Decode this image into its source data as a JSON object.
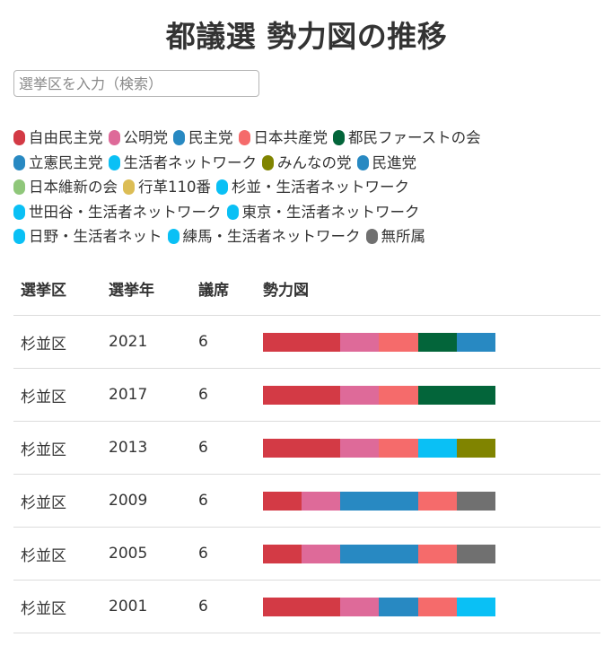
{
  "title": "都議選 勢力図の推移",
  "search": {
    "placeholder": "選挙区を入力（検索）"
  },
  "legend": {
    "lines": [
      [
        {
          "label": "自由民主党",
          "color": "#d33a45"
        },
        {
          "label": "公明党",
          "color": "#de6a99"
        },
        {
          "label": "民主党",
          "color": "#2889c2"
        },
        {
          "label": "日本共産党",
          "color": "#f56b6b"
        },
        {
          "label": "都民ファーストの会",
          "color": "#03653a"
        }
      ],
      [
        {
          "label": "立憲民主党",
          "color": "#2889c2"
        },
        {
          "label": "生活者ネットワーク",
          "color": "#0ac0f5"
        },
        {
          "label": "みんなの党",
          "color": "#808400"
        },
        {
          "label": "民進党",
          "color": "#2889c2"
        }
      ],
      [
        {
          "label": "日本維新の会",
          "color": "#8fc77a"
        },
        {
          "label": "行革110番",
          "color": "#dcbd55"
        },
        {
          "label": "杉並・生活者ネットワーク",
          "color": "#0ac0f5"
        }
      ],
      [
        {
          "label": "世田谷・生活者ネットワーク",
          "color": "#0ac0f5"
        },
        {
          "label": "東京・生活者ネットワーク",
          "color": "#0ac0f5"
        }
      ],
      [
        {
          "label": "日野・生活者ネット",
          "color": "#0ac0f5"
        },
        {
          "label": "練馬・生活者ネットワーク",
          "color": "#0ac0f5"
        },
        {
          "label": "無所属",
          "color": "#707070"
        }
      ]
    ]
  },
  "table": {
    "headers": [
      "選挙区",
      "選挙年",
      "議席",
      "勢力図"
    ],
    "rows": [
      {
        "district": "杉並区",
        "year": "2021",
        "seats": "6",
        "bar": [
          {
            "party": "自由民主党",
            "seats": 2,
            "color": "#d33a45"
          },
          {
            "party": "公明党",
            "seats": 1,
            "color": "#de6a99"
          },
          {
            "party": "日本共産党",
            "seats": 1,
            "color": "#f56b6b"
          },
          {
            "party": "都民ファーストの会",
            "seats": 1,
            "color": "#03653a"
          },
          {
            "party": "立憲民主党",
            "seats": 1,
            "color": "#2889c2"
          }
        ]
      },
      {
        "district": "杉並区",
        "year": "2017",
        "seats": "6",
        "bar": [
          {
            "party": "自由民主党",
            "seats": 2,
            "color": "#d33a45"
          },
          {
            "party": "公明党",
            "seats": 1,
            "color": "#de6a99"
          },
          {
            "party": "日本共産党",
            "seats": 1,
            "color": "#f56b6b"
          },
          {
            "party": "都民ファーストの会",
            "seats": 2,
            "color": "#03653a"
          }
        ]
      },
      {
        "district": "杉並区",
        "year": "2013",
        "seats": "6",
        "bar": [
          {
            "party": "自由民主党",
            "seats": 2,
            "color": "#d33a45"
          },
          {
            "party": "公明党",
            "seats": 1,
            "color": "#de6a99"
          },
          {
            "party": "日本共産党",
            "seats": 1,
            "color": "#f56b6b"
          },
          {
            "party": "杉並・生活者ネットワーク",
            "seats": 1,
            "color": "#0ac0f5"
          },
          {
            "party": "みんなの党",
            "seats": 1,
            "color": "#808400"
          }
        ]
      },
      {
        "district": "杉並区",
        "year": "2009",
        "seats": "6",
        "bar": [
          {
            "party": "自由民主党",
            "seats": 1,
            "color": "#d33a45"
          },
          {
            "party": "公明党",
            "seats": 1,
            "color": "#de6a99"
          },
          {
            "party": "民主党",
            "seats": 2,
            "color": "#2889c2"
          },
          {
            "party": "日本共産党",
            "seats": 1,
            "color": "#f56b6b"
          },
          {
            "party": "無所属",
            "seats": 1,
            "color": "#707070"
          }
        ]
      },
      {
        "district": "杉並区",
        "year": "2005",
        "seats": "6",
        "bar": [
          {
            "party": "自由民主党",
            "seats": 1,
            "color": "#d33a45"
          },
          {
            "party": "公明党",
            "seats": 1,
            "color": "#de6a99"
          },
          {
            "party": "民主党",
            "seats": 2,
            "color": "#2889c2"
          },
          {
            "party": "日本共産党",
            "seats": 1,
            "color": "#f56b6b"
          },
          {
            "party": "無所属",
            "seats": 1,
            "color": "#707070"
          }
        ]
      },
      {
        "district": "杉並区",
        "year": "2001",
        "seats": "6",
        "bar": [
          {
            "party": "自由民主党",
            "seats": 2,
            "color": "#d33a45"
          },
          {
            "party": "公明党",
            "seats": 1,
            "color": "#de6a99"
          },
          {
            "party": "民主党",
            "seats": 1,
            "color": "#2889c2"
          },
          {
            "party": "日本共産党",
            "seats": 1,
            "color": "#f56b6b"
          },
          {
            "party": "生活者ネットワーク",
            "seats": 1,
            "color": "#0ac0f5"
          }
        ]
      }
    ]
  }
}
